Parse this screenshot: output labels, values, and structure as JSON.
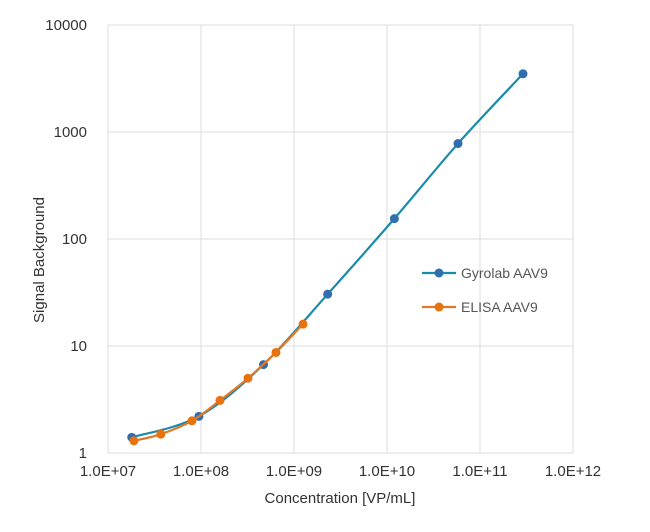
{
  "chart_data": {
    "type": "line",
    "title": "",
    "xlabel": "Concentration [VP/mL]",
    "ylabel": "Signal Background",
    "x_scale": "log",
    "y_scale": "log",
    "xlim": [
      10000000,
      1000000000000
    ],
    "ylim": [
      1,
      10000
    ],
    "x_ticks": [
      "1.0E+07",
      "1.0E+08",
      "1.0E+09",
      "1.0E+10",
      "1.0E+11",
      "1.0E+12"
    ],
    "y_ticks": [
      "1",
      "10",
      "100",
      "1000",
      "10000"
    ],
    "grid": true,
    "legend_position": "right",
    "series": [
      {
        "name": "Gyrolab AAV9",
        "color": "#1a8aaa",
        "marker_color": "#2f6fae",
        "x": [
          18000000,
          95000000,
          470000000,
          2300000000,
          12000000000,
          58000000000,
          290000000000
        ],
        "y": [
          1.4,
          2.2,
          6.7,
          30.5,
          155,
          780,
          3500
        ]
      },
      {
        "name": "ELISA AAV9",
        "color": "#e0792a",
        "marker_color": "#e8730e",
        "x": [
          19000000,
          37000000,
          80000000,
          160000000,
          320000000,
          640000000,
          1250000000
        ],
        "y": [
          1.3,
          1.5,
          2.0,
          3.1,
          5.0,
          8.7,
          16.0
        ]
      }
    ]
  }
}
